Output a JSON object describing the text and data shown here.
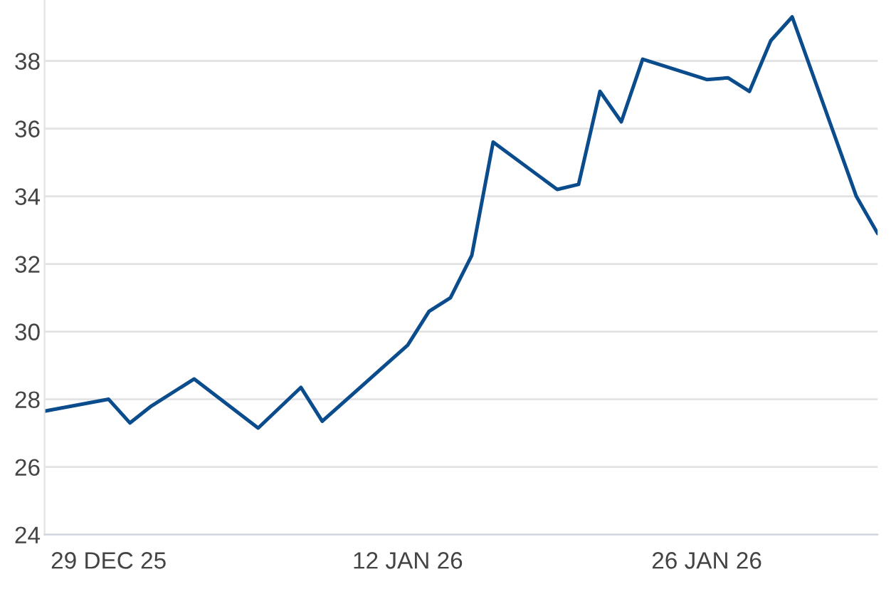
{
  "chart_data": {
    "type": "line",
    "x": [
      "2025-12-26",
      "2025-12-29",
      "2025-12-30",
      "2025-12-31",
      "2026-01-02",
      "2026-01-05",
      "2026-01-07",
      "2026-01-08",
      "2026-01-12",
      "2026-01-13",
      "2026-01-14",
      "2026-01-15",
      "2026-01-16",
      "2026-01-19",
      "2026-01-20",
      "2026-01-21",
      "2026-01-22",
      "2026-01-23",
      "2026-01-26",
      "2026-01-27",
      "2026-01-28",
      "2026-01-29",
      "2026-01-30",
      "2026-02-02",
      "2026-02-03"
    ],
    "series": [
      {
        "color": "#0b4c8c",
        "values": [
          27.65,
          28.0,
          27.3,
          27.8,
          28.6,
          27.15,
          28.35,
          27.35,
          29.6,
          30.6,
          31.0,
          32.25,
          35.6,
          34.2,
          34.35,
          37.1,
          36.2,
          38.05,
          37.45,
          37.5,
          37.1,
          38.6,
          39.3,
          34.0,
          32.9
        ]
      }
    ],
    "xlim": [
      "2025-12-26",
      "2026-02-03"
    ],
    "xticks": [
      {
        "value": "2025-12-29",
        "label": "29 DEC 25"
      },
      {
        "value": "2026-01-12",
        "label": "12 JAN 26"
      },
      {
        "value": "2026-01-26",
        "label": "26 JAN 26"
      }
    ],
    "ylim": [
      24,
      39.8
    ],
    "yticks": [
      24,
      26,
      28,
      30,
      32,
      34,
      36,
      38
    ],
    "grid": "y",
    "legend": false,
    "marker": "none",
    "line_style": "solid"
  }
}
